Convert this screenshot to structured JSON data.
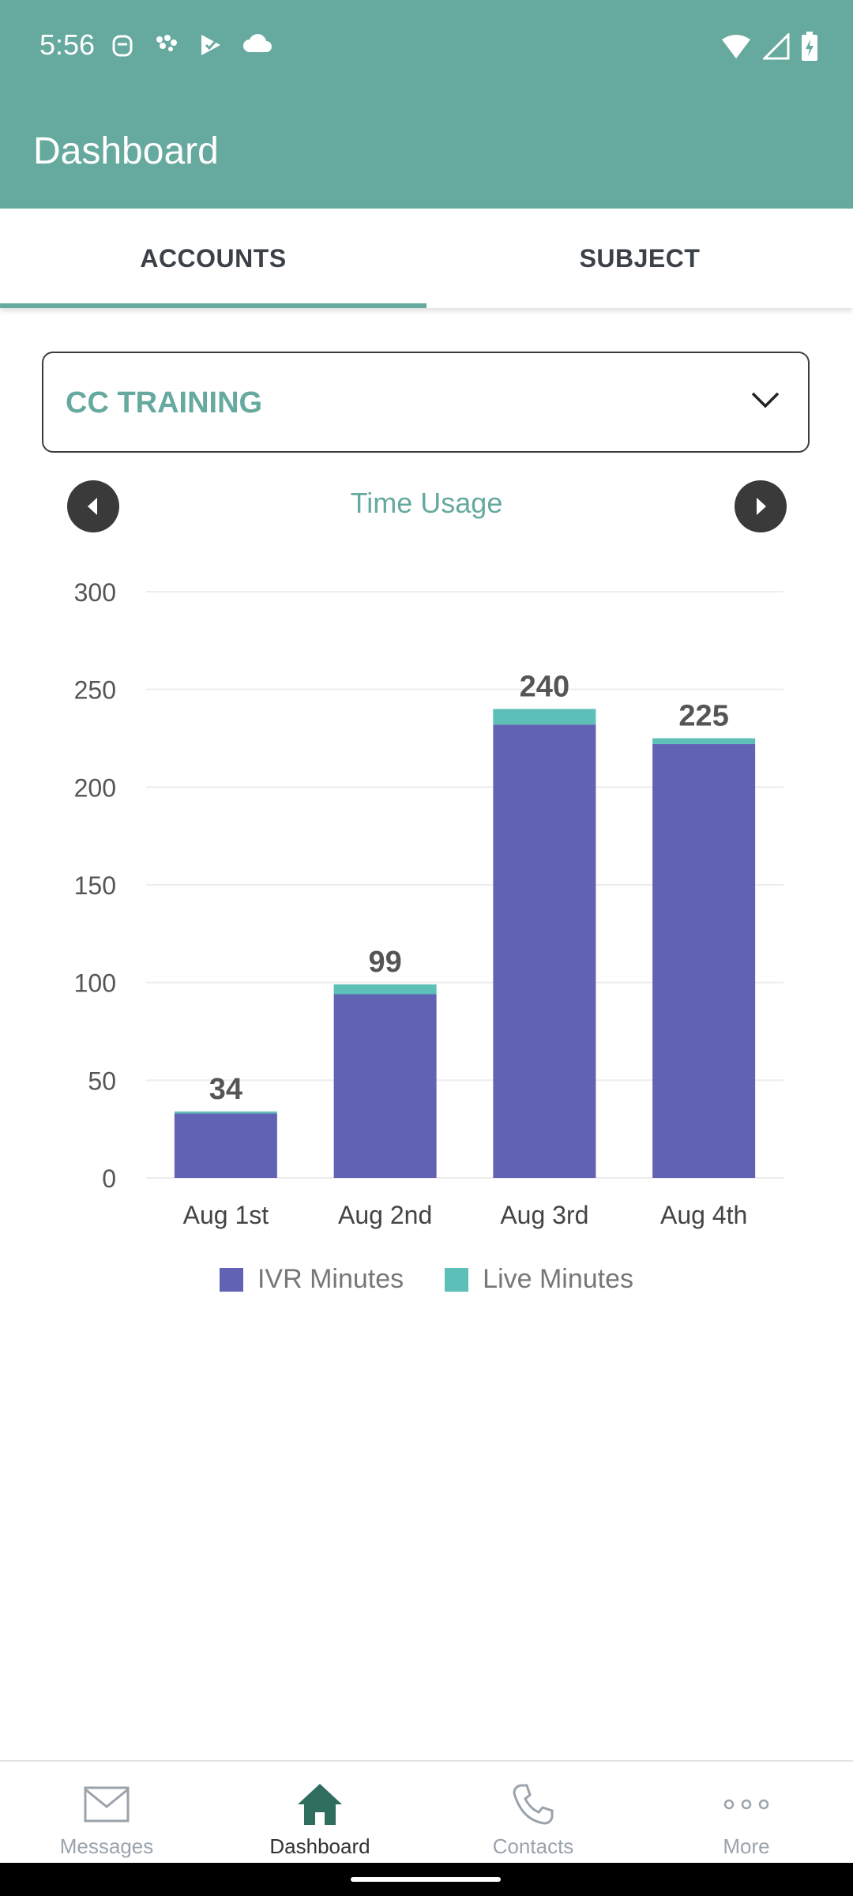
{
  "status_bar": {
    "time": "5:56",
    "icons_left": [
      "face-icon",
      "brain-icon",
      "play-check-icon",
      "cloud-icon"
    ],
    "icons_right": [
      "wifi-icon",
      "signal-icon",
      "battery-charging-icon"
    ]
  },
  "app_bar": {
    "title": "Dashboard"
  },
  "tabs": [
    {
      "label": "ACCOUNTS",
      "selected": true
    },
    {
      "label": "SUBJECT",
      "selected": false
    }
  ],
  "dropdown": {
    "value": "CC TRAINING"
  },
  "chart_nav": {
    "title": "Time Usage"
  },
  "chart_data": {
    "type": "bar",
    "stacked": true,
    "categories": [
      "Aug 1st",
      "Aug 2nd",
      "Aug 3rd",
      "Aug 4th"
    ],
    "series": [
      {
        "name": "IVR Minutes",
        "values": [
          33,
          94,
          232,
          222
        ],
        "color": "#6162b3"
      },
      {
        "name": "Live Minutes",
        "values": [
          1,
          5,
          8,
          3
        ],
        "color": "#5cbfb8"
      }
    ],
    "totals": [
      34,
      99,
      240,
      225
    ],
    "ylim": [
      0,
      300
    ],
    "yticks": [
      0,
      50,
      100,
      150,
      200,
      250,
      300
    ],
    "grid": true,
    "legend_position": "bottom"
  },
  "bottom_nav": [
    {
      "label": "Messages",
      "icon": "mail-icon",
      "active": false
    },
    {
      "label": "Dashboard",
      "icon": "home-icon",
      "active": true
    },
    {
      "label": "Contacts",
      "icon": "phone-icon",
      "active": false
    },
    {
      "label": "More",
      "icon": "more-icon",
      "active": false
    }
  ],
  "colors": {
    "primary": "#66a99e",
    "active_nav": "#2f6d5f",
    "inactive_nav": "#9aa3ab"
  }
}
